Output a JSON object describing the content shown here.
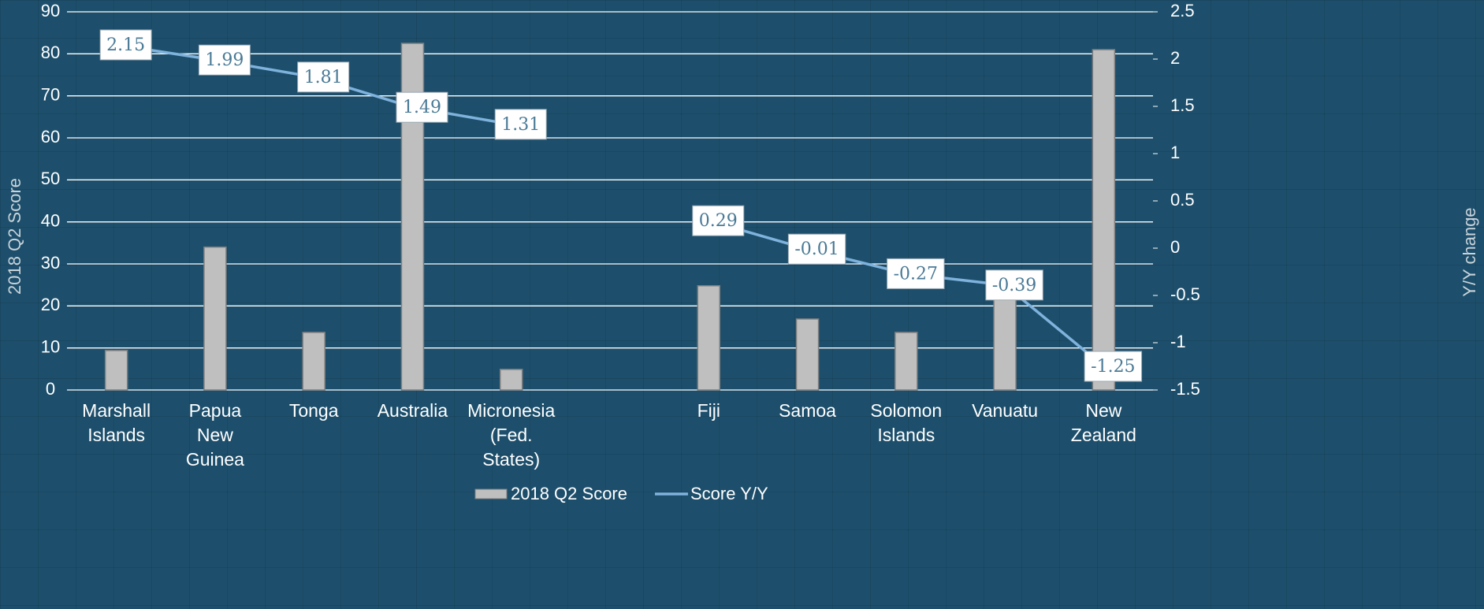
{
  "chart_data": {
    "type": "bar_line",
    "categories": [
      "Marshall Islands",
      "Papua New Guinea",
      "Tonga",
      "Australia",
      "Micronesia (Fed. States)",
      null,
      "Fiji",
      "Samoa",
      "Solomon Islands",
      "Vanuatu",
      "New Zealand"
    ],
    "series": [
      {
        "name": "2018 Q2 Score",
        "type": "bar",
        "color": "#bfbfbf",
        "values": [
          9.4,
          34,
          13.7,
          82.5,
          4.9,
          null,
          24.8,
          16.9,
          13.7,
          23.4,
          81
        ]
      },
      {
        "name": "Score Y/Y",
        "type": "line",
        "axis": "y2",
        "color": "#7fb2dc",
        "values": [
          2.15,
          1.99,
          1.81,
          1.49,
          1.31,
          null,
          0.29,
          -0.01,
          -0.27,
          -0.39,
          -1.25
        ]
      }
    ],
    "y_label": "2018 Q2 Score",
    "y2_label": "Y/Y change",
    "ylim": [
      0,
      90
    ],
    "yticks": [
      0,
      10,
      20,
      30,
      40,
      50,
      60,
      70,
      80,
      90
    ],
    "y2lim": [
      -1.5,
      2.5
    ],
    "y2ticks": [
      -1.5,
      -1,
      -0.5,
      0,
      0.5,
      1,
      1.5,
      2,
      2.5
    ],
    "grid": true,
    "legend": "bottom"
  }
}
